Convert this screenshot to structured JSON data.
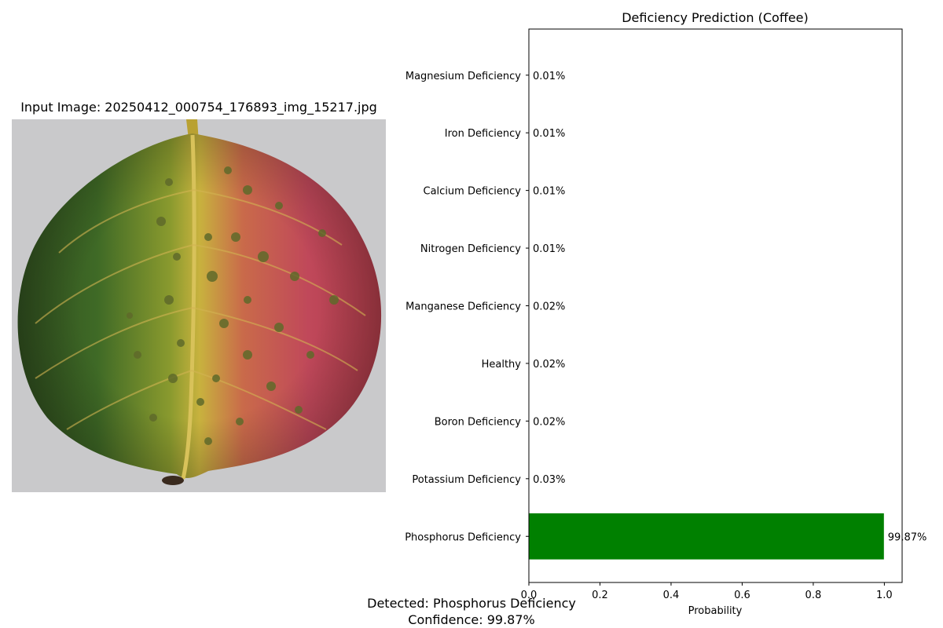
{
  "input_image": {
    "title": "Input Image: 20250412_000754_176893_img_15217.jpg"
  },
  "chart_data": {
    "type": "bar",
    "orientation": "horizontal",
    "title": "Deficiency Prediction (Coffee)",
    "xlabel": "Probability",
    "ylabel": "",
    "xlim": [
      0,
      1.05
    ],
    "xticks": [
      "0.0",
      "0.2",
      "0.4",
      "0.6",
      "0.8",
      "1.0"
    ],
    "categories": [
      "Phosphorus Deficiency",
      "Potassium Deficiency",
      "Boron Deficiency",
      "Healthy",
      "Manganese Deficiency",
      "Nitrogen Deficiency",
      "Calcium Deficiency",
      "Iron Deficiency",
      "Magnesium Deficiency"
    ],
    "values": [
      0.9987,
      0.0003,
      0.0002,
      0.0002,
      0.0002,
      0.0001,
      0.0001,
      0.0001,
      0.0001
    ],
    "value_labels": [
      "99.87%",
      "0.03%",
      "0.02%",
      "0.02%",
      "0.02%",
      "0.01%",
      "0.01%",
      "0.01%",
      "0.01%"
    ],
    "bar_color": "#008000",
    "grid": false
  },
  "result": {
    "detected": "Detected: Phosphorus Deficiency",
    "confidence": "Confidence: 99.87%"
  }
}
